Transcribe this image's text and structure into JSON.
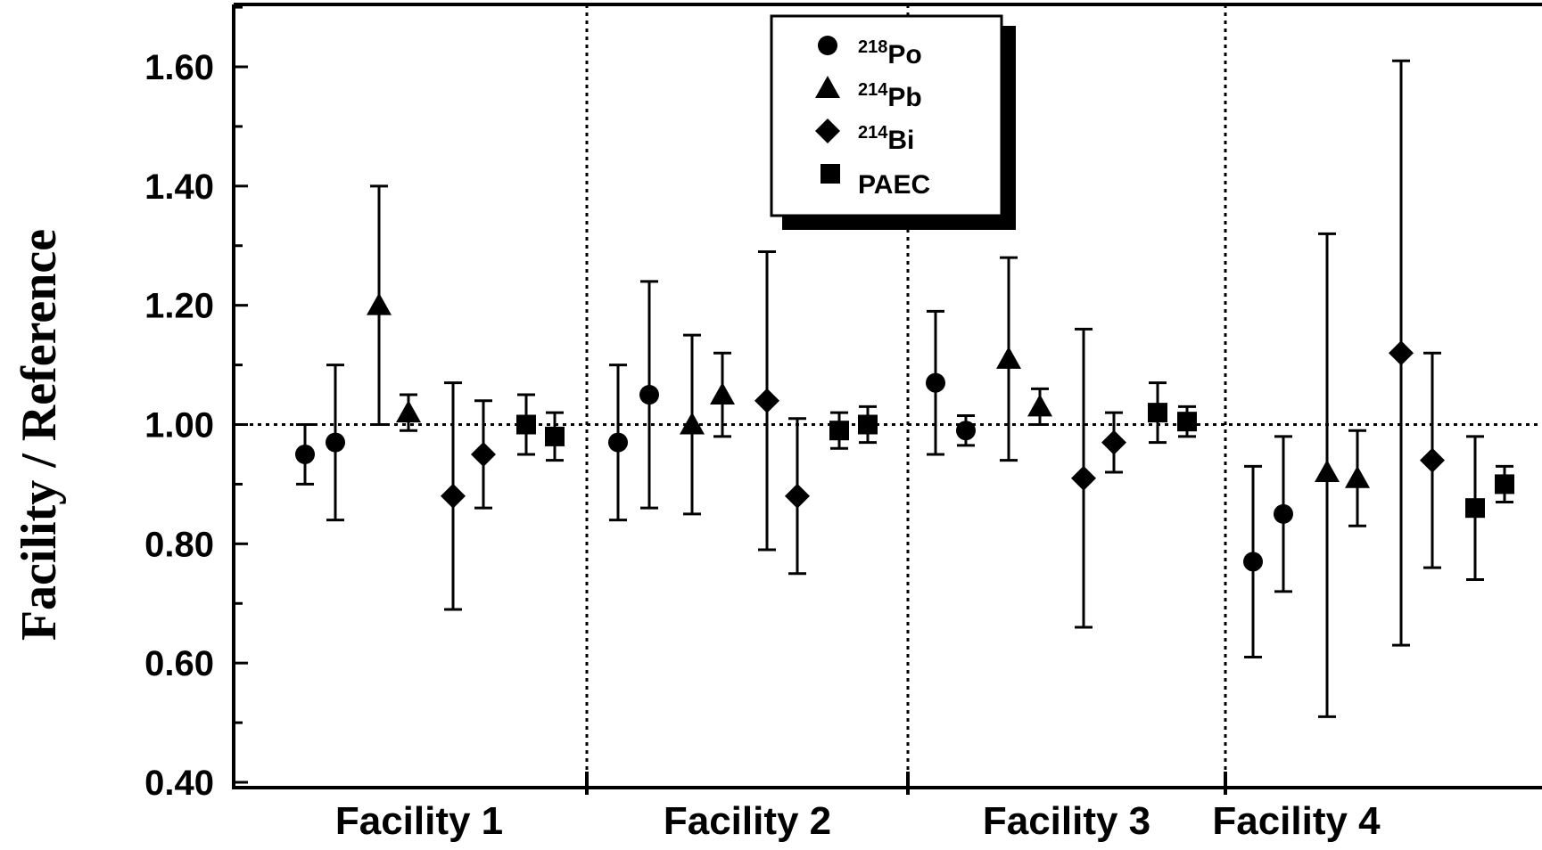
{
  "chart_data": {
    "type": "scatter",
    "ylabel": "Facility / Reference",
    "xlabel": "",
    "ylim": [
      0.4,
      1.7
    ],
    "yticks": [
      "0.40",
      "0.60",
      "0.80",
      "1.00",
      "1.20",
      "1.40",
      "1.60"
    ],
    "yticks_values": [
      0.4,
      0.6,
      0.8,
      1.0,
      1.2,
      1.4,
      1.6
    ],
    "reference_line": 1.0,
    "grid": false,
    "legend_position": "top-center",
    "categories": [
      "Facility 1",
      "Facility 2",
      "Facility 3",
      "Facility 4"
    ],
    "series": [
      {
        "name": "218Po",
        "sup": "218",
        "base": "Po",
        "marker": "circle",
        "points": [
          {
            "facility": 0,
            "slot": 0,
            "y": 0.95,
            "lo": 0.9,
            "hi": 1.0
          },
          {
            "facility": 0,
            "slot": 1,
            "y": 0.97,
            "lo": 0.84,
            "hi": 1.1
          },
          {
            "facility": 1,
            "slot": 0,
            "y": 0.97,
            "lo": 0.84,
            "hi": 1.1
          },
          {
            "facility": 1,
            "slot": 1,
            "y": 1.05,
            "lo": 0.86,
            "hi": 1.24
          },
          {
            "facility": 2,
            "slot": 0,
            "y": 1.07,
            "lo": 0.95,
            "hi": 1.19
          },
          {
            "facility": 2,
            "slot": 1,
            "y": 0.99,
            "lo": 0.965,
            "hi": 1.015
          },
          {
            "facility": 3,
            "slot": 0,
            "y": 0.77,
            "lo": 0.61,
            "hi": 0.93
          },
          {
            "facility": 3,
            "slot": 1,
            "y": 0.85,
            "lo": 0.72,
            "hi": 0.98
          }
        ]
      },
      {
        "name": "214Pb",
        "sup": "214",
        "base": "Pb",
        "marker": "triangle",
        "points": [
          {
            "facility": 0,
            "slot": 2,
            "y": 1.2,
            "lo": 1.0,
            "hi": 1.4
          },
          {
            "facility": 0,
            "slot": 3,
            "y": 1.02,
            "lo": 0.99,
            "hi": 1.05
          },
          {
            "facility": 1,
            "slot": 2,
            "y": 1.0,
            "lo": 0.85,
            "hi": 1.15
          },
          {
            "facility": 1,
            "slot": 3,
            "y": 1.05,
            "lo": 0.98,
            "hi": 1.12
          },
          {
            "facility": 2,
            "slot": 2,
            "y": 1.11,
            "lo": 0.94,
            "hi": 1.28
          },
          {
            "facility": 2,
            "slot": 3,
            "y": 1.03,
            "lo": 1.0,
            "hi": 1.06
          },
          {
            "facility": 3,
            "slot": 2,
            "y": 0.92,
            "lo": 0.51,
            "hi": 1.32
          },
          {
            "facility": 3,
            "slot": 3,
            "y": 0.91,
            "lo": 0.83,
            "hi": 0.99
          }
        ]
      },
      {
        "name": "214Bi",
        "sup": "214",
        "base": "Bi",
        "marker": "diamond",
        "points": [
          {
            "facility": 0,
            "slot": 4,
            "y": 0.88,
            "lo": 0.69,
            "hi": 1.07
          },
          {
            "facility": 0,
            "slot": 5,
            "y": 0.95,
            "lo": 0.86,
            "hi": 1.04
          },
          {
            "facility": 1,
            "slot": 4,
            "y": 1.04,
            "lo": 0.79,
            "hi": 1.29
          },
          {
            "facility": 1,
            "slot": 5,
            "y": 0.88,
            "lo": 0.75,
            "hi": 1.01
          },
          {
            "facility": 2,
            "slot": 4,
            "y": 0.91,
            "lo": 0.66,
            "hi": 1.16
          },
          {
            "facility": 2,
            "slot": 5,
            "y": 0.97,
            "lo": 0.92,
            "hi": 1.02
          },
          {
            "facility": 3,
            "slot": 4,
            "y": 1.12,
            "lo": 0.63,
            "hi": 1.61
          },
          {
            "facility": 3,
            "slot": 5,
            "y": 0.94,
            "lo": 0.76,
            "hi": 1.12
          }
        ]
      },
      {
        "name": "PAEC",
        "sup": "",
        "base": "PAEC",
        "marker": "square",
        "points": [
          {
            "facility": 0,
            "slot": 6,
            "y": 1.0,
            "lo": 0.95,
            "hi": 1.05
          },
          {
            "facility": 0,
            "slot": 7,
            "y": 0.98,
            "lo": 0.94,
            "hi": 1.02
          },
          {
            "facility": 1,
            "slot": 6,
            "y": 0.99,
            "lo": 0.96,
            "hi": 1.02
          },
          {
            "facility": 1,
            "slot": 7,
            "y": 1.0,
            "lo": 0.97,
            "hi": 1.03
          },
          {
            "facility": 2,
            "slot": 6,
            "y": 1.02,
            "lo": 0.97,
            "hi": 1.07
          },
          {
            "facility": 2,
            "slot": 7,
            "y": 1.005,
            "lo": 0.98,
            "hi": 1.03
          },
          {
            "facility": 3,
            "slot": 6,
            "y": 0.86,
            "lo": 0.74,
            "hi": 0.98
          },
          {
            "facility": 3,
            "slot": 7,
            "y": 0.9,
            "lo": 0.87,
            "hi": 0.93
          }
        ]
      }
    ]
  }
}
